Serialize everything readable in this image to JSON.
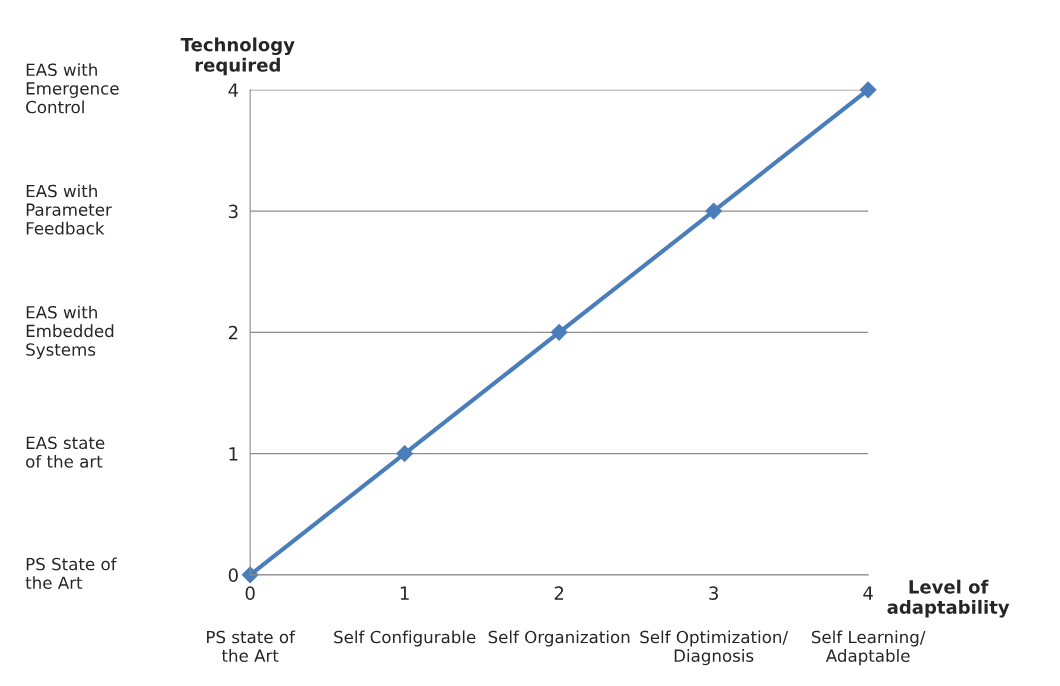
{
  "chart_data": {
    "type": "line",
    "xlabel": "Level of\nadaptability",
    "ylabel": "Technology\nrequired",
    "x": [
      0,
      1,
      2,
      3,
      4
    ],
    "series": [
      {
        "color": "#4a7ebb",
        "values": [
          0,
          1,
          2,
          3,
          4
        ]
      }
    ],
    "xlim": [
      0,
      4
    ],
    "ylim": [
      0,
      4
    ],
    "xticks": [
      0,
      1,
      2,
      3,
      4
    ],
    "yticks": [
      0,
      1,
      2,
      3,
      4
    ],
    "grid": "y",
    "marker": "diamond",
    "line_style": "solid",
    "legend": false,
    "annotations": [
      "PS State of\nthe Art",
      "EAS state\nof the art",
      "EAS with\nEmbedded\nSystems",
      "EAS with\nParameter\nFeedback",
      "EAS with\nEmergence\nControl",
      "PS state of\nthe Art",
      "Self Configurable",
      "Self Organization",
      "Self Optimization/\nDiagnosis",
      "Self Learning/\nAdaptable"
    ]
  }
}
